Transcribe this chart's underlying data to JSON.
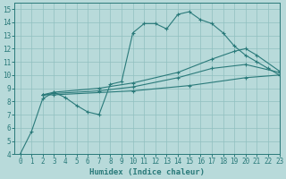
{
  "xlabel": "Humidex (Indice chaleur)",
  "xlim": [
    -0.5,
    23
  ],
  "ylim": [
    4,
    15.5
  ],
  "xticks": [
    0,
    1,
    2,
    3,
    4,
    5,
    6,
    7,
    8,
    9,
    10,
    11,
    12,
    13,
    14,
    15,
    16,
    17,
    18,
    19,
    20,
    21,
    22,
    23
  ],
  "yticks": [
    4,
    5,
    6,
    7,
    8,
    9,
    10,
    11,
    12,
    13,
    14,
    15
  ],
  "line_color": "#2a7a7a",
  "bg_color": "#b8dada",
  "grid_color": "#90c0c0",
  "lines": [
    {
      "x": [
        0,
        1,
        2,
        3,
        4,
        5,
        6,
        7,
        8,
        9,
        10,
        11,
        12,
        13,
        14,
        15,
        16,
        17,
        18,
        19,
        20,
        21,
        22,
        23
      ],
      "y": [
        4.0,
        5.7,
        8.2,
        8.7,
        8.3,
        7.7,
        7.2,
        7.0,
        9.3,
        9.5,
        13.2,
        13.9,
        13.9,
        13.5,
        14.6,
        14.8,
        14.2,
        13.9,
        13.2,
        12.2,
        11.5,
        11.0,
        10.5,
        10.0
      ]
    },
    {
      "x": [
        2,
        3,
        7,
        10,
        14,
        17,
        19,
        20,
        21,
        23
      ],
      "y": [
        8.5,
        8.7,
        9.0,
        9.4,
        10.2,
        11.2,
        11.8,
        12.0,
        11.5,
        10.3
      ]
    },
    {
      "x": [
        2,
        3,
        7,
        10,
        14,
        17,
        20,
        23
      ],
      "y": [
        8.5,
        8.6,
        8.8,
        9.1,
        9.8,
        10.5,
        10.8,
        10.2
      ]
    },
    {
      "x": [
        2,
        3,
        10,
        15,
        20,
        23
      ],
      "y": [
        8.5,
        8.5,
        8.8,
        9.2,
        9.8,
        10.0
      ]
    }
  ]
}
